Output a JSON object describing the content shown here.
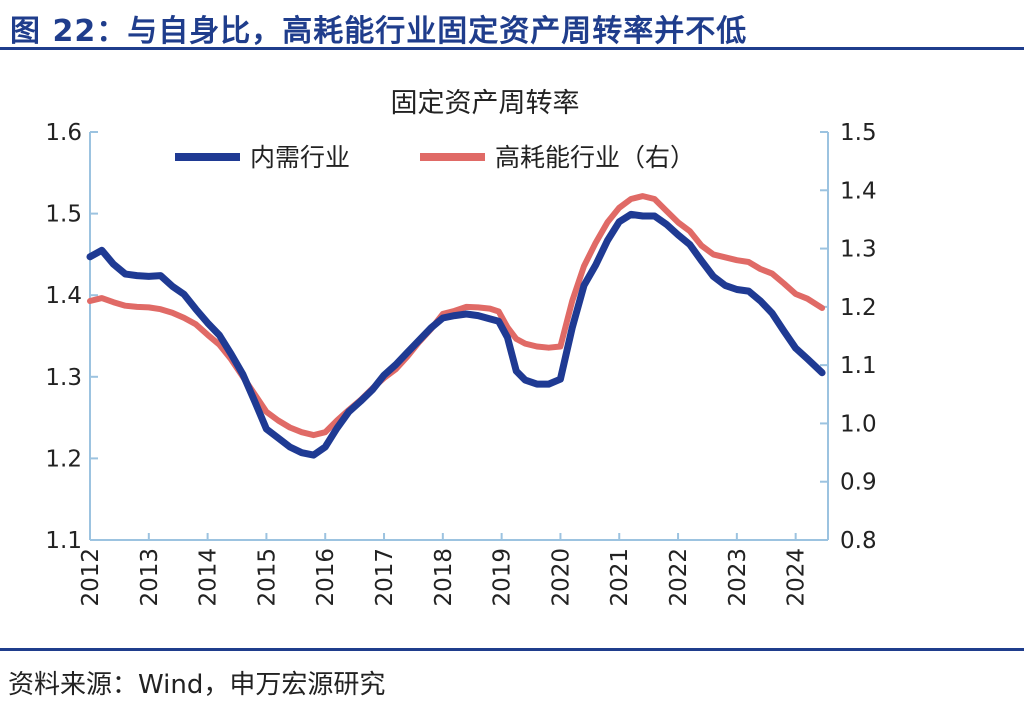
{
  "figure_title": "图 22：与自身比，高耗能行业固定资产周转率并不低",
  "source": "资料来源：Wind，申万宏源研究",
  "colors": {
    "series1": "#1f3a93",
    "series2": "#e06a66",
    "axis": "#9cc3e0",
    "heading": "#1f3d8c"
  },
  "chart_data": {
    "type": "line",
    "title": "固定资产周转率",
    "x_ticks": [
      "2012",
      "2013",
      "2014",
      "2015",
      "2016",
      "2017",
      "2018",
      "2019",
      "2020",
      "2021",
      "2022",
      "2023",
      "2024"
    ],
    "xlim": [
      2012.0,
      2024.55
    ],
    "y_left": {
      "lim": [
        1.1,
        1.6
      ],
      "ticks": [
        "1.1",
        "1.2",
        "1.3",
        "1.4",
        "1.5",
        "1.6"
      ]
    },
    "y_right": {
      "lim": [
        0.8,
        1.5
      ],
      "ticks": [
        "0.8",
        "0.9",
        "1.0",
        "1.1",
        "1.2",
        "1.3",
        "1.4",
        "1.5"
      ]
    },
    "legend_position": "top",
    "grid": false,
    "series": [
      {
        "name": "内需行业",
        "axis": "left",
        "points": [
          [
            2012.0,
            1.447
          ],
          [
            2012.2,
            1.455
          ],
          [
            2012.4,
            1.438
          ],
          [
            2012.6,
            1.426
          ],
          [
            2012.8,
            1.424
          ],
          [
            2013.0,
            1.423
          ],
          [
            2013.2,
            1.424
          ],
          [
            2013.4,
            1.411
          ],
          [
            2013.6,
            1.401
          ],
          [
            2013.8,
            1.383
          ],
          [
            2014.0,
            1.366
          ],
          [
            2014.2,
            1.351
          ],
          [
            2014.4,
            1.328
          ],
          [
            2014.6,
            1.303
          ],
          [
            2014.8,
            1.27
          ],
          [
            2015.0,
            1.236
          ],
          [
            2015.2,
            1.225
          ],
          [
            2015.4,
            1.214
          ],
          [
            2015.6,
            1.207
          ],
          [
            2015.8,
            1.204
          ],
          [
            2016.0,
            1.214
          ],
          [
            2016.2,
            1.237
          ],
          [
            2016.4,
            1.257
          ],
          [
            2016.6,
            1.27
          ],
          [
            2016.8,
            1.284
          ],
          [
            2017.0,
            1.302
          ],
          [
            2017.2,
            1.315
          ],
          [
            2017.4,
            1.33
          ],
          [
            2017.6,
            1.345
          ],
          [
            2017.8,
            1.36
          ],
          [
            2018.0,
            1.372
          ],
          [
            2018.2,
            1.375
          ],
          [
            2018.4,
            1.377
          ],
          [
            2018.6,
            1.375
          ],
          [
            2018.8,
            1.371
          ],
          [
            2018.95,
            1.368
          ],
          [
            2019.1,
            1.348
          ],
          [
            2019.25,
            1.307
          ],
          [
            2019.4,
            1.296
          ],
          [
            2019.6,
            1.291
          ],
          [
            2019.8,
            1.291
          ],
          [
            2020.0,
            1.297
          ],
          [
            2020.2,
            1.36
          ],
          [
            2020.4,
            1.412
          ],
          [
            2020.6,
            1.437
          ],
          [
            2020.8,
            1.467
          ],
          [
            2021.0,
            1.49
          ],
          [
            2021.2,
            1.499
          ],
          [
            2021.4,
            1.497
          ],
          [
            2021.6,
            1.497
          ],
          [
            2021.8,
            1.487
          ],
          [
            2022.0,
            1.474
          ],
          [
            2022.2,
            1.462
          ],
          [
            2022.4,
            1.442
          ],
          [
            2022.6,
            1.423
          ],
          [
            2022.8,
            1.412
          ],
          [
            2023.0,
            1.407
          ],
          [
            2023.2,
            1.405
          ],
          [
            2023.4,
            1.393
          ],
          [
            2023.6,
            1.378
          ],
          [
            2023.8,
            1.356
          ],
          [
            2024.0,
            1.335
          ],
          [
            2024.2,
            1.322
          ],
          [
            2024.45,
            1.305
          ]
        ]
      },
      {
        "name": "高耗能行业（右）",
        "axis": "right",
        "points": [
          [
            2012.0,
            1.21
          ],
          [
            2012.2,
            1.215
          ],
          [
            2012.4,
            1.208
          ],
          [
            2012.6,
            1.202
          ],
          [
            2012.8,
            1.2
          ],
          [
            2013.0,
            1.199
          ],
          [
            2013.2,
            1.196
          ],
          [
            2013.4,
            1.19
          ],
          [
            2013.6,
            1.181
          ],
          [
            2013.8,
            1.17
          ],
          [
            2014.0,
            1.152
          ],
          [
            2014.2,
            1.135
          ],
          [
            2014.4,
            1.11
          ],
          [
            2014.6,
            1.08
          ],
          [
            2014.8,
            1.05
          ],
          [
            2015.0,
            1.02
          ],
          [
            2015.2,
            1.005
          ],
          [
            2015.4,
            0.993
          ],
          [
            2015.6,
            0.985
          ],
          [
            2015.8,
            0.98
          ],
          [
            2016.0,
            0.985
          ],
          [
            2016.2,
            1.005
          ],
          [
            2016.4,
            1.023
          ],
          [
            2016.6,
            1.04
          ],
          [
            2016.8,
            1.06
          ],
          [
            2017.0,
            1.078
          ],
          [
            2017.2,
            1.093
          ],
          [
            2017.4,
            1.115
          ],
          [
            2017.6,
            1.14
          ],
          [
            2017.8,
            1.162
          ],
          [
            2018.0,
            1.188
          ],
          [
            2018.2,
            1.193
          ],
          [
            2018.4,
            1.2
          ],
          [
            2018.6,
            1.199
          ],
          [
            2018.8,
            1.197
          ],
          [
            2018.95,
            1.192
          ],
          [
            2019.1,
            1.165
          ],
          [
            2019.25,
            1.145
          ],
          [
            2019.4,
            1.137
          ],
          [
            2019.6,
            1.132
          ],
          [
            2019.8,
            1.13
          ],
          [
            2020.0,
            1.132
          ],
          [
            2020.2,
            1.21
          ],
          [
            2020.4,
            1.27
          ],
          [
            2020.6,
            1.31
          ],
          [
            2020.8,
            1.345
          ],
          [
            2021.0,
            1.37
          ],
          [
            2021.2,
            1.385
          ],
          [
            2021.4,
            1.39
          ],
          [
            2021.6,
            1.385
          ],
          [
            2021.8,
            1.365
          ],
          [
            2022.0,
            1.345
          ],
          [
            2022.2,
            1.33
          ],
          [
            2022.4,
            1.305
          ],
          [
            2022.6,
            1.29
          ],
          [
            2022.8,
            1.285
          ],
          [
            2023.0,
            1.28
          ],
          [
            2023.2,
            1.277
          ],
          [
            2023.4,
            1.265
          ],
          [
            2023.6,
            1.257
          ],
          [
            2023.8,
            1.24
          ],
          [
            2024.0,
            1.222
          ],
          [
            2024.2,
            1.214
          ],
          [
            2024.45,
            1.198
          ]
        ]
      }
    ]
  }
}
